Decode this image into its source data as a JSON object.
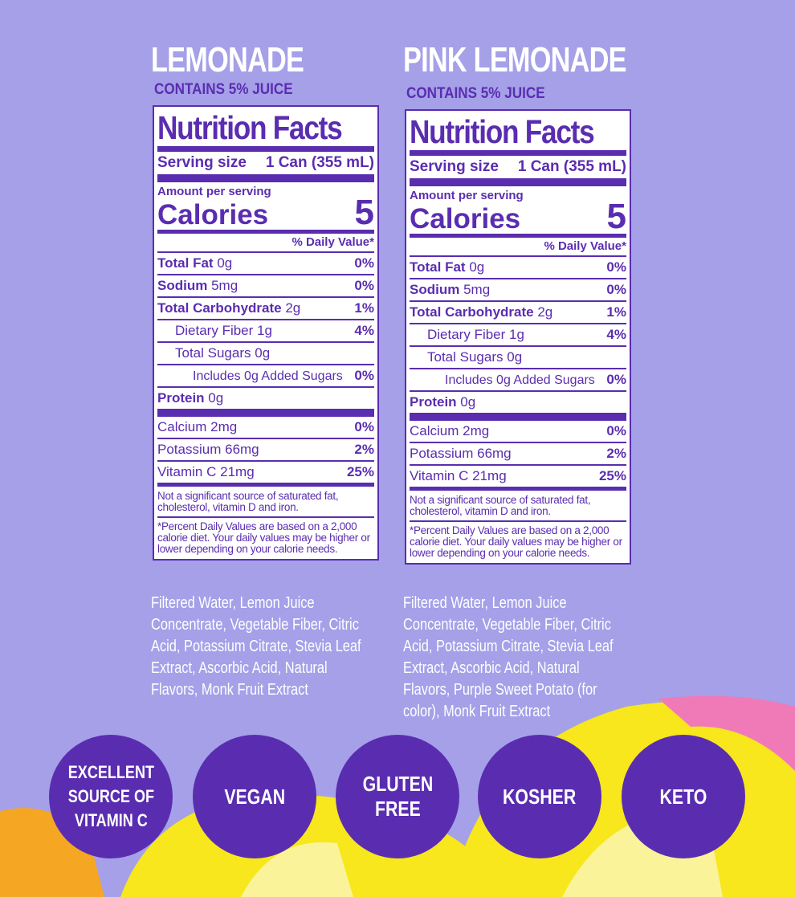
{
  "products": [
    {
      "name": "LEMONADE",
      "juice": "CONTAINS 5% JUICE",
      "label": {
        "title": "Nutrition Facts",
        "serving_label": "Serving size",
        "serving_size": "1 Can (355 mL)",
        "amount_per_serving": "Amount per serving",
        "calories_label": "Calories",
        "calories": "5",
        "dv_header": "% Daily Value*",
        "rows": [
          {
            "name": "Total Fat",
            "amount": "0g",
            "dv": "0%",
            "bold": true,
            "indent": 0
          },
          {
            "name": "Sodium",
            "amount": "5mg",
            "dv": "0%",
            "bold": true,
            "indent": 0
          },
          {
            "name": "Total Carbohydrate",
            "amount": "2g",
            "dv": "1%",
            "bold": true,
            "indent": 0
          },
          {
            "name": "Dietary Fiber",
            "amount": "1g",
            "dv": "4%",
            "bold": false,
            "indent": 1
          },
          {
            "name": "Total Sugars",
            "amount": "0g",
            "dv": null,
            "bold": false,
            "indent": 1
          },
          {
            "name": "Includes 0g Added Sugars",
            "amount": null,
            "dv": "0%",
            "bold": false,
            "indent": 2
          },
          {
            "name": "Protein",
            "amount": "0g",
            "dv": null,
            "bold": true,
            "indent": 0
          }
        ],
        "vitamins": [
          {
            "name": "Calcium",
            "amount": "2mg",
            "dv": "0%"
          },
          {
            "name": "Potassium",
            "amount": "66mg",
            "dv": "2%"
          },
          {
            "name": "Vitamin C",
            "amount": "21mg",
            "dv": "25%"
          }
        ],
        "note": "Not a significant source of saturated fat, cholesterol, vitamin D and iron.",
        "footnote": "*Percent Daily Values are based on a 2,000 calorie diet. Your daily values may be higher or lower depending on your calorie needs."
      },
      "ingredients": "Filtered Water, Lemon Juice Concentrate, Vegetable Fiber, Citric Acid, Potassium Citrate, Stevia Leaf Extract, Ascorbic Acid, Natural Flavors, Monk Fruit Extract"
    },
    {
      "name": "PINK LEMONADE",
      "juice": "CONTAINS 5% JUICE",
      "label": {
        "title": "Nutrition Facts",
        "serving_label": "Serving size",
        "serving_size": "1 Can (355 mL)",
        "amount_per_serving": "Amount per serving",
        "calories_label": "Calories",
        "calories": "5",
        "dv_header": "% Daily Value*",
        "rows": [
          {
            "name": "Total Fat",
            "amount": "0g",
            "dv": "0%",
            "bold": true,
            "indent": 0
          },
          {
            "name": "Sodium",
            "amount": "5mg",
            "dv": "0%",
            "bold": true,
            "indent": 0
          },
          {
            "name": "Total Carbohydrate",
            "amount": "2g",
            "dv": "1%",
            "bold": true,
            "indent": 0
          },
          {
            "name": "Dietary Fiber",
            "amount": "1g",
            "dv": "4%",
            "bold": false,
            "indent": 1
          },
          {
            "name": "Total Sugars",
            "amount": "0g",
            "dv": null,
            "bold": false,
            "indent": 1
          },
          {
            "name": "Includes 0g Added Sugars",
            "amount": null,
            "dv": "0%",
            "bold": false,
            "indent": 2
          },
          {
            "name": "Protein",
            "amount": "0g",
            "dv": null,
            "bold": true,
            "indent": 0
          }
        ],
        "vitamins": [
          {
            "name": "Calcium",
            "amount": "2mg",
            "dv": "0%"
          },
          {
            "name": "Potassium",
            "amount": "66mg",
            "dv": "2%"
          },
          {
            "name": "Vitamin C",
            "amount": "21mg",
            "dv": "25%"
          }
        ],
        "note": "Not a significant source of saturated fat, cholesterol, vitamin D and iron.",
        "footnote": "*Percent Daily Values are based on a 2,000 calorie diet. Your daily values may be higher or lower depending on your calorie needs."
      },
      "ingredients": "Filtered Water, Lemon Juice Concentrate, Vegetable Fiber, Citric Acid, Potassium Citrate, Stevia Leaf Extract, Ascorbic Acid, Natural Flavors, Purple Sweet Potato (for color), Monk Fruit Extract"
    }
  ],
  "badges": [
    "EXCELLENT\nSOURCE OF\nVITAMIN C",
    "VEGAN",
    "GLUTEN\nFREE",
    "KOSHER",
    "KETO"
  ]
}
